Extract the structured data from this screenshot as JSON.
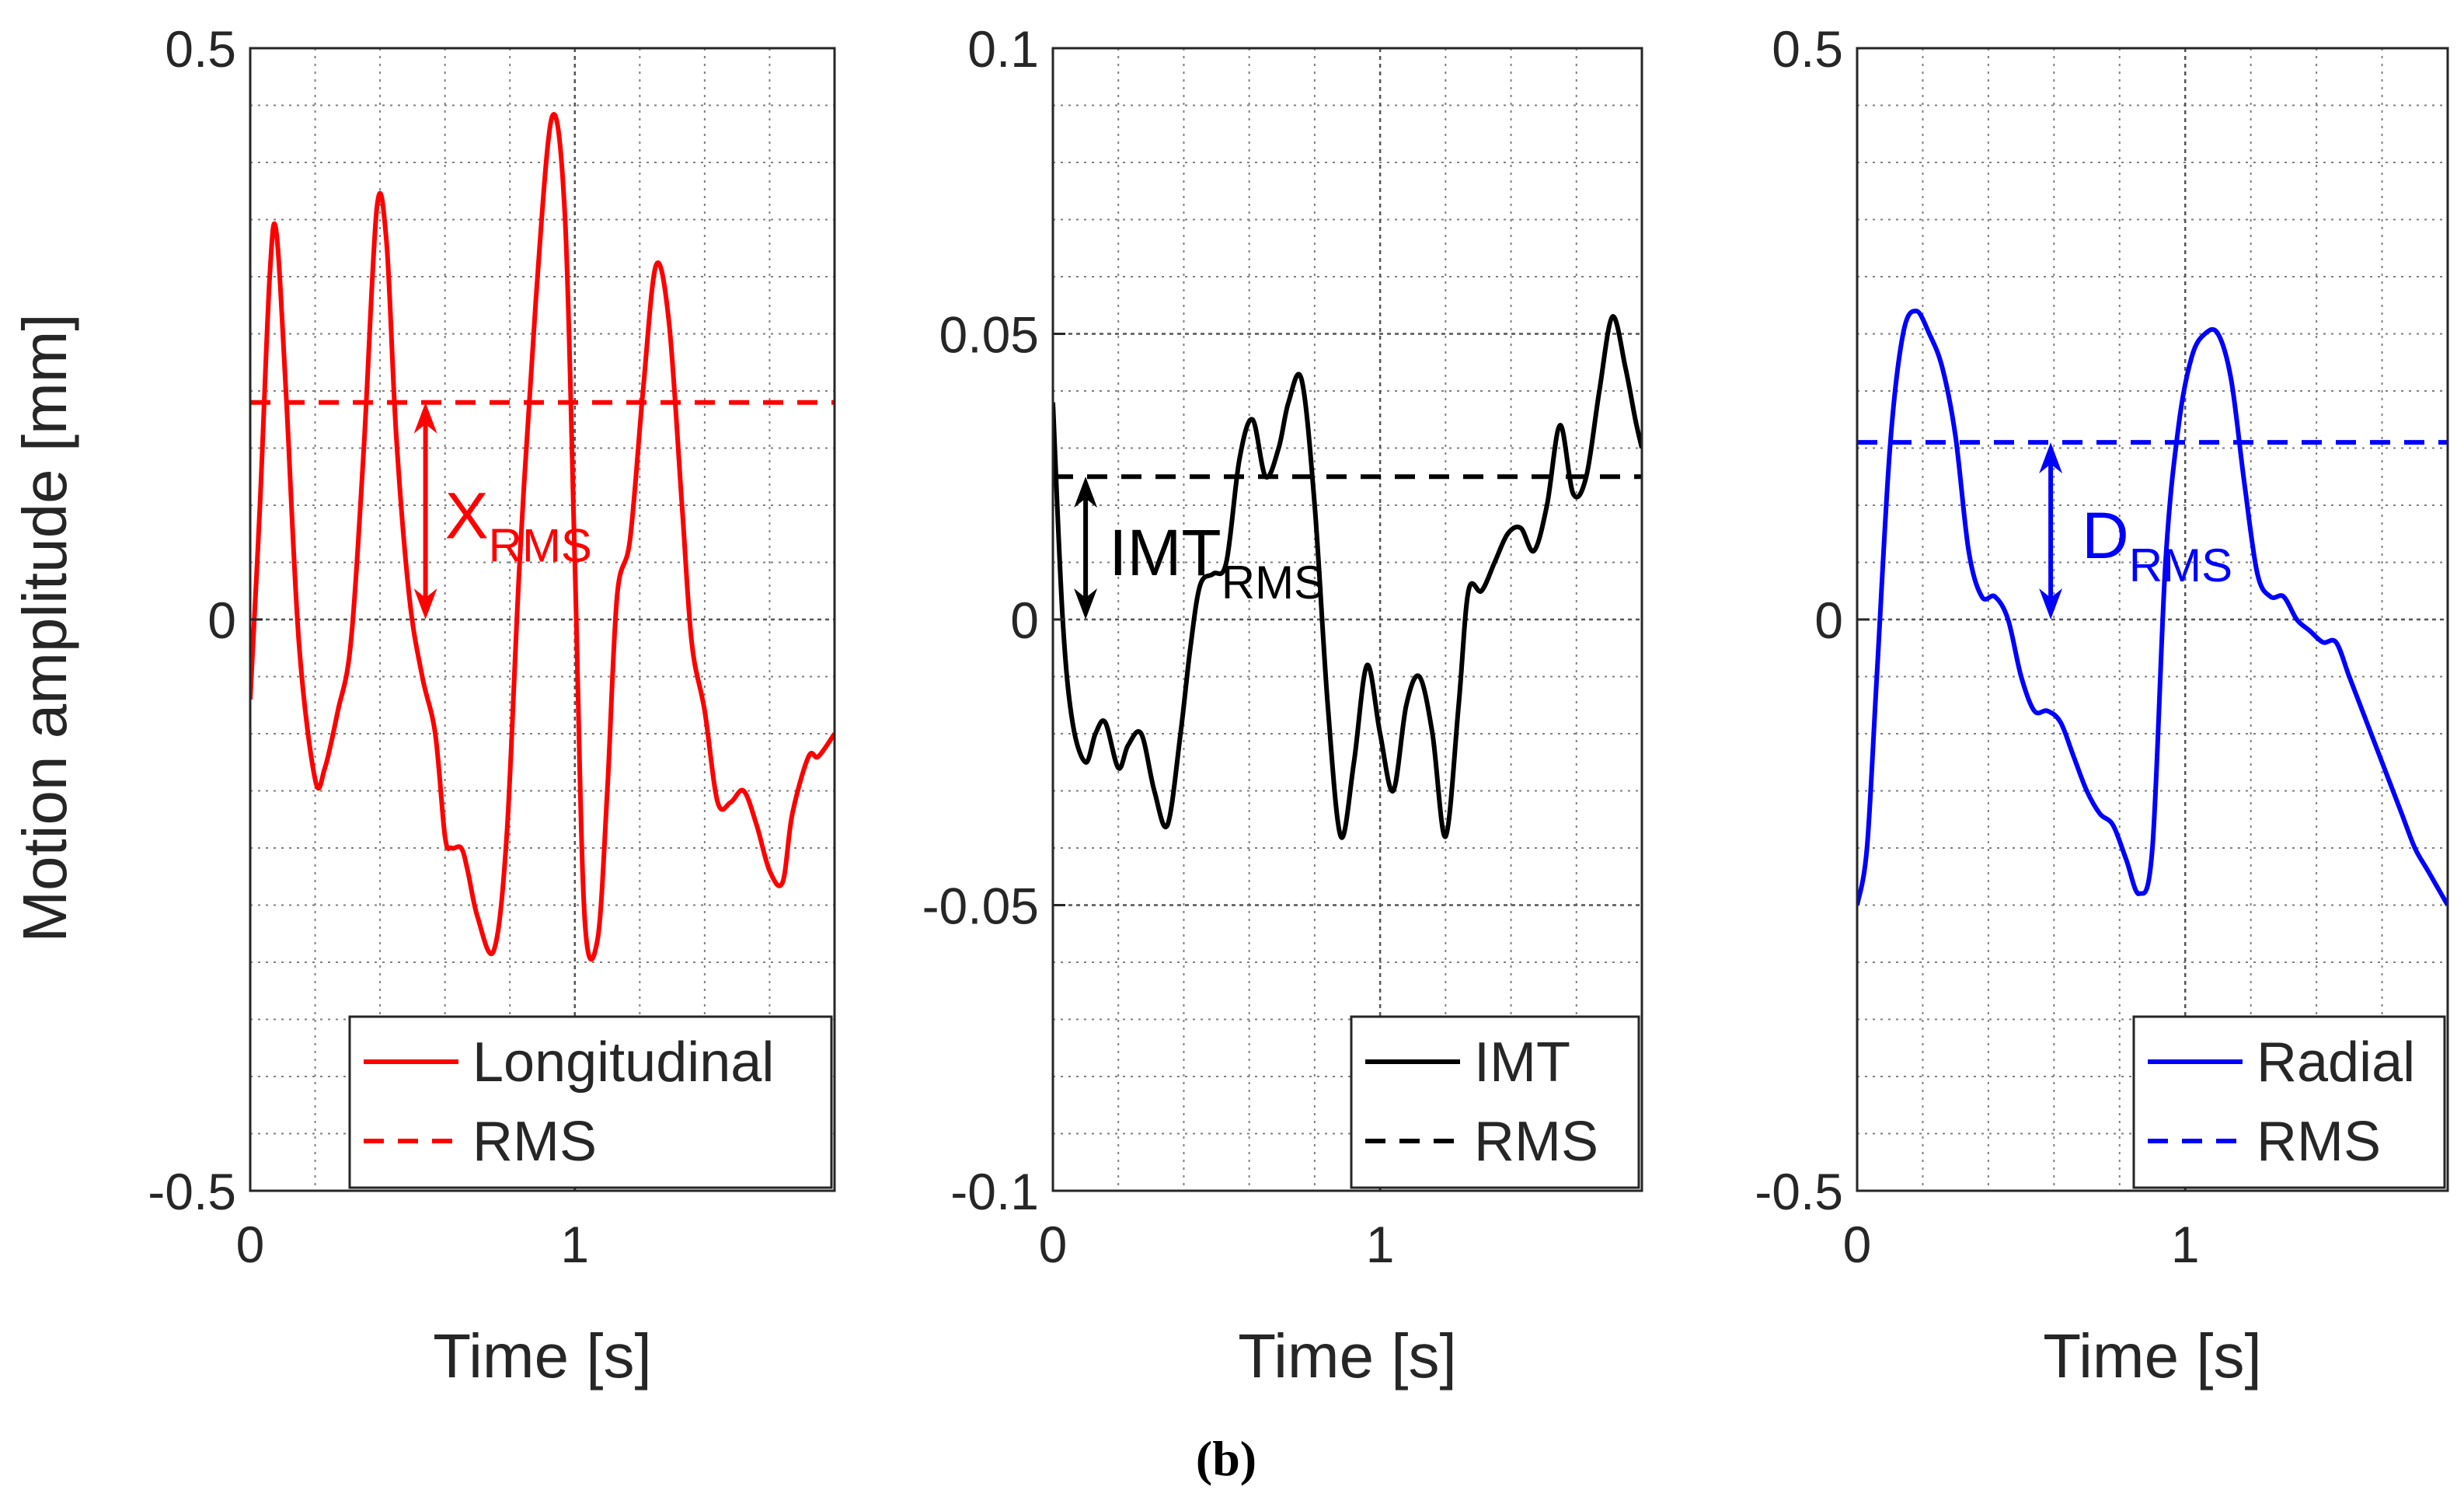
{
  "figure": {
    "caption": "(b)"
  },
  "chart_data": [
    {
      "type": "line",
      "title": "",
      "xlabel": "Time [s]",
      "ylabel": "Motion amplitude [mm]",
      "xlim": [
        0,
        1.8
      ],
      "ylim": [
        -0.5,
        0.5
      ],
      "xticks": [
        0,
        1
      ],
      "xtick_labels": [
        "0",
        "1"
      ],
      "yticks": [
        -0.5,
        0,
        0.5
      ],
      "ytick_labels": [
        "-0.5",
        "0",
        "0.5"
      ],
      "minor_grid": {
        "x_step": 0.2,
        "y_step": 0.05
      },
      "grid": true,
      "legend_position": "bottom-right",
      "series": [
        {
          "name": "Longitudinal",
          "style": "solid",
          "color": "#ff0000",
          "x": [
            0,
            0.03,
            0.06,
            0.08,
            0.11,
            0.15,
            0.2,
            0.23,
            0.27,
            0.31,
            0.35,
            0.39,
            0.42,
            0.45,
            0.49,
            0.53,
            0.57,
            0.6,
            0.62,
            0.65,
            0.67,
            0.7,
            0.75,
            0.79,
            0.83,
            0.88,
            0.93,
            0.97,
            1.0,
            1.03,
            1.07,
            1.1,
            1.13,
            1.17,
            1.21,
            1.25,
            1.29,
            1.33,
            1.36,
            1.4,
            1.44,
            1.48,
            1.52,
            1.56,
            1.6,
            1.64,
            1.67,
            1.72,
            1.75,
            1.8
          ],
          "y": [
            -0.07,
            0.1,
            0.3,
            0.34,
            0.2,
            -0.02,
            -0.14,
            -0.13,
            -0.08,
            -0.02,
            0.15,
            0.36,
            0.33,
            0.16,
            0.02,
            -0.05,
            -0.1,
            -0.19,
            -0.2,
            -0.2,
            -0.22,
            -0.26,
            -0.29,
            -0.19,
            0.05,
            0.28,
            0.44,
            0.35,
            0.05,
            -0.26,
            -0.28,
            -0.15,
            0.02,
            0.07,
            0.2,
            0.31,
            0.26,
            0.1,
            -0.02,
            -0.08,
            -0.16,
            -0.16,
            -0.15,
            -0.18,
            -0.22,
            -0.23,
            -0.17,
            -0.12,
            -0.12,
            -0.1
          ]
        },
        {
          "name": "RMS",
          "style": "dashed",
          "color": "#ff0000",
          "x": [
            0,
            1.8
          ],
          "y": [
            0.19,
            0.19
          ]
        }
      ],
      "annotation": {
        "text": "X",
        "subscript": "RMS",
        "color": "#ff0000",
        "arrow_x": 0.54,
        "arrow_from": 0.19,
        "arrow_to": 0
      }
    },
    {
      "type": "line",
      "title": "",
      "xlabel": "Time [s]",
      "ylabel": "",
      "xlim": [
        0,
        1.8
      ],
      "ylim": [
        -0.1,
        0.1
      ],
      "xticks": [
        0,
        1
      ],
      "xtick_labels": [
        "0",
        "1"
      ],
      "yticks": [
        -0.1,
        -0.05,
        0,
        0.05,
        0.1
      ],
      "ytick_labels": [
        "-0.1",
        "-0.05",
        "0",
        "0.05",
        "0.1"
      ],
      "minor_grid": {
        "x_step": 0.2,
        "y_step": 0.01
      },
      "grid": true,
      "legend_position": "bottom-right",
      "series": [
        {
          "name": "IMT",
          "style": "solid",
          "color": "#000000",
          "x": [
            0,
            0.03,
            0.06,
            0.1,
            0.13,
            0.16,
            0.2,
            0.23,
            0.27,
            0.31,
            0.35,
            0.39,
            0.42,
            0.45,
            0.49,
            0.53,
            0.57,
            0.61,
            0.65,
            0.69,
            0.72,
            0.76,
            0.8,
            0.84,
            0.88,
            0.92,
            0.96,
            1.0,
            1.04,
            1.08,
            1.12,
            1.16,
            1.2,
            1.24,
            1.27,
            1.31,
            1.35,
            1.39,
            1.43,
            1.47,
            1.51,
            1.55,
            1.59,
            1.63,
            1.67,
            1.71,
            1.75,
            1.78,
            1.8
          ],
          "y": [
            0.038,
            0.0,
            -0.018,
            -0.025,
            -0.02,
            -0.018,
            -0.026,
            -0.022,
            -0.02,
            -0.03,
            -0.036,
            -0.02,
            -0.005,
            0.006,
            0.008,
            0.01,
            0.028,
            0.035,
            0.025,
            0.03,
            0.038,
            0.042,
            0.02,
            -0.015,
            -0.038,
            -0.025,
            -0.008,
            -0.02,
            -0.03,
            -0.015,
            -0.01,
            -0.02,
            -0.038,
            -0.015,
            0.005,
            0.005,
            0.01,
            0.015,
            0.016,
            0.012,
            0.02,
            0.034,
            0.022,
            0.025,
            0.04,
            0.053,
            0.044,
            0.035,
            0.03
          ]
        },
        {
          "name": "RMS",
          "style": "dashed",
          "color": "#000000",
          "x": [
            0,
            1.8
          ],
          "y": [
            0.025,
            0.025
          ]
        }
      ],
      "annotation": {
        "text": "IMT",
        "subscript": "RMS",
        "color": "#000000",
        "arrow_x": 0.1,
        "arrow_from": 0.025,
        "arrow_to": 0
      }
    },
    {
      "type": "line",
      "title": "",
      "xlabel": "Time [s]",
      "ylabel": "",
      "xlim": [
        0,
        1.8
      ],
      "ylim": [
        -0.5,
        0.5
      ],
      "xticks": [
        0,
        1
      ],
      "xtick_labels": [
        "0",
        "1"
      ],
      "yticks": [
        -0.5,
        0,
        0.5
      ],
      "ytick_labels": [
        "-0.5",
        "0",
        "0.5"
      ],
      "minor_grid": {
        "x_step": 0.2,
        "y_step": 0.05
      },
      "grid": true,
      "legend_position": "bottom-right",
      "series": [
        {
          "name": "Radial",
          "style": "solid",
          "color": "#0000ff",
          "x": [
            0,
            0.03,
            0.06,
            0.1,
            0.14,
            0.18,
            0.22,
            0.26,
            0.3,
            0.34,
            0.38,
            0.42,
            0.46,
            0.5,
            0.54,
            0.58,
            0.62,
            0.66,
            0.7,
            0.74,
            0.78,
            0.82,
            0.86,
            0.9,
            0.94,
            0.98,
            1.02,
            1.06,
            1.1,
            1.14,
            1.18,
            1.22,
            1.26,
            1.3,
            1.34,
            1.38,
            1.42,
            1.46,
            1.5,
            1.54,
            1.58,
            1.62,
            1.66,
            1.7,
            1.74,
            1.8
          ],
          "y": [
            -0.25,
            -0.2,
            -0.05,
            0.15,
            0.25,
            0.27,
            0.25,
            0.22,
            0.16,
            0.06,
            0.02,
            0.02,
            0.0,
            -0.05,
            -0.08,
            -0.08,
            -0.09,
            -0.12,
            -0.15,
            -0.17,
            -0.18,
            -0.21,
            -0.24,
            -0.2,
            0.05,
            0.17,
            0.23,
            0.25,
            0.25,
            0.21,
            0.12,
            0.04,
            0.02,
            0.02,
            0.0,
            -0.01,
            -0.02,
            -0.02,
            -0.05,
            -0.08,
            -0.11,
            -0.14,
            -0.17,
            -0.2,
            -0.22,
            -0.25
          ]
        },
        {
          "name": "RMS",
          "style": "dashed",
          "color": "#0000ff",
          "x": [
            0,
            1.8
          ],
          "y": [
            0.155,
            0.155
          ]
        }
      ],
      "annotation": {
        "text": "D",
        "subscript": "RMS",
        "color": "#0000ff",
        "arrow_x": 0.59,
        "arrow_from": 0.155,
        "arrow_to": 0
      }
    }
  ]
}
